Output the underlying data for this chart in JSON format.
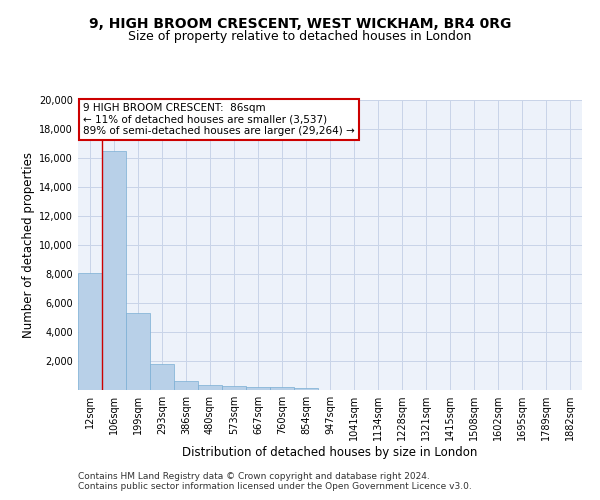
{
  "title1": "9, HIGH BROOM CRESCENT, WEST WICKHAM, BR4 0RG",
  "title2": "Size of property relative to detached houses in London",
  "xlabel": "Distribution of detached houses by size in London",
  "ylabel": "Number of detached properties",
  "categories": [
    "12sqm",
    "106sqm",
    "199sqm",
    "293sqm",
    "386sqm",
    "480sqm",
    "573sqm",
    "667sqm",
    "760sqm",
    "854sqm",
    "947sqm",
    "1041sqm",
    "1134sqm",
    "1228sqm",
    "1321sqm",
    "1415sqm",
    "1508sqm",
    "1602sqm",
    "1695sqm",
    "1789sqm",
    "1882sqm"
  ],
  "values": [
    8100,
    16500,
    5300,
    1800,
    650,
    350,
    270,
    220,
    190,
    170,
    0,
    0,
    0,
    0,
    0,
    0,
    0,
    0,
    0,
    0,
    0
  ],
  "bar_color": "#b8d0e8",
  "bar_edge_color": "#7aaed4",
  "annotation_line1": "9 HIGH BROOM CRESCENT:  86sqm",
  "annotation_line2": "← 11% of detached houses are smaller (3,537)",
  "annotation_line3": "89% of semi-detached houses are larger (29,264) →",
  "annotation_box_color": "#ffffff",
  "annotation_box_edge_color": "#cc0000",
  "vline_x": 0.5,
  "vline_color": "#cc0000",
  "grid_color": "#c8d4e8",
  "bg_color": "#edf2fa",
  "ylim": [
    0,
    20000
  ],
  "yticks": [
    0,
    2000,
    4000,
    6000,
    8000,
    10000,
    12000,
    14000,
    16000,
    18000,
    20000
  ],
  "footer1": "Contains HM Land Registry data © Crown copyright and database right 2024.",
  "footer2": "Contains public sector information licensed under the Open Government Licence v3.0.",
  "title1_fontsize": 10,
  "title2_fontsize": 9,
  "ylabel_fontsize": 8.5,
  "xlabel_fontsize": 8.5,
  "tick_fontsize": 7,
  "footer_fontsize": 6.5,
  "ann_fontsize": 7.5
}
